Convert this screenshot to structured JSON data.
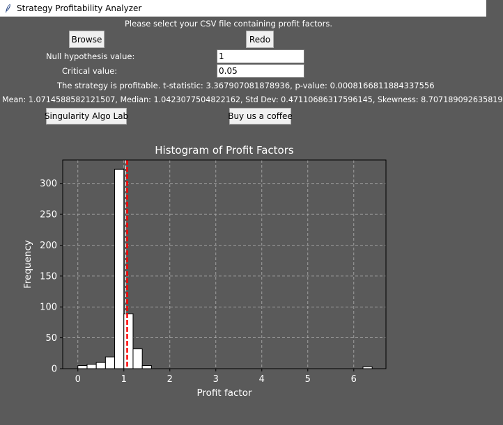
{
  "window": {
    "title": "Strategy Profitability Analyzer"
  },
  "instructions": "Please select your CSV file containing profit factors.",
  "buttons": {
    "browse": "Browse",
    "redo": "Redo",
    "lab": "Singularity Algo Lab",
    "coffee": "Buy us a coffee"
  },
  "fields": {
    "null_hyp_label": "Null hypothesis value:",
    "null_hyp_value": "1",
    "critical_label": "Critical value:",
    "critical_value": "0.05"
  },
  "results": {
    "verdict": "The strategy is profitable. t-statistic: 3.367907081878936, p-value: 0.0008166811884337556",
    "stats": "Mean: 1.0714588582121507, Median: 1.0423077504822162, Std Dev: 0.47110686317596145, Skewness: 8.707189092635819"
  },
  "colors": {
    "background": "#5a5a5a",
    "bar_fill": "#ffffff",
    "bar_stroke": "#000000",
    "mean_line": "#ff0000",
    "median_line": "#ffffff"
  },
  "chart_data": {
    "type": "bar",
    "title": "Histogram of Profit Factors",
    "xlabel": "Profit factor",
    "ylabel": "Frequency",
    "xlim": [
      -0.33,
      6.7
    ],
    "ylim": [
      0,
      338
    ],
    "xticks": [
      0,
      1,
      2,
      3,
      4,
      5,
      6
    ],
    "yticks": [
      0,
      50,
      100,
      150,
      200,
      250,
      300
    ],
    "grid": true,
    "bin_width": 0.2,
    "bins": [
      {
        "x0": 0.0,
        "value": 5
      },
      {
        "x0": 0.2,
        "value": 7
      },
      {
        "x0": 0.4,
        "value": 10
      },
      {
        "x0": 0.6,
        "value": 19
      },
      {
        "x0": 0.8,
        "value": 323
      },
      {
        "x0": 1.0,
        "value": 89
      },
      {
        "x0": 1.2,
        "value": 32
      },
      {
        "x0": 1.4,
        "value": 5
      },
      {
        "x0": 1.6,
        "value": 0
      },
      {
        "x0": 6.2,
        "value": 3
      }
    ],
    "mean_line_x": 1.0714588582121507,
    "median_line_x": 1.0423077504822162
  }
}
